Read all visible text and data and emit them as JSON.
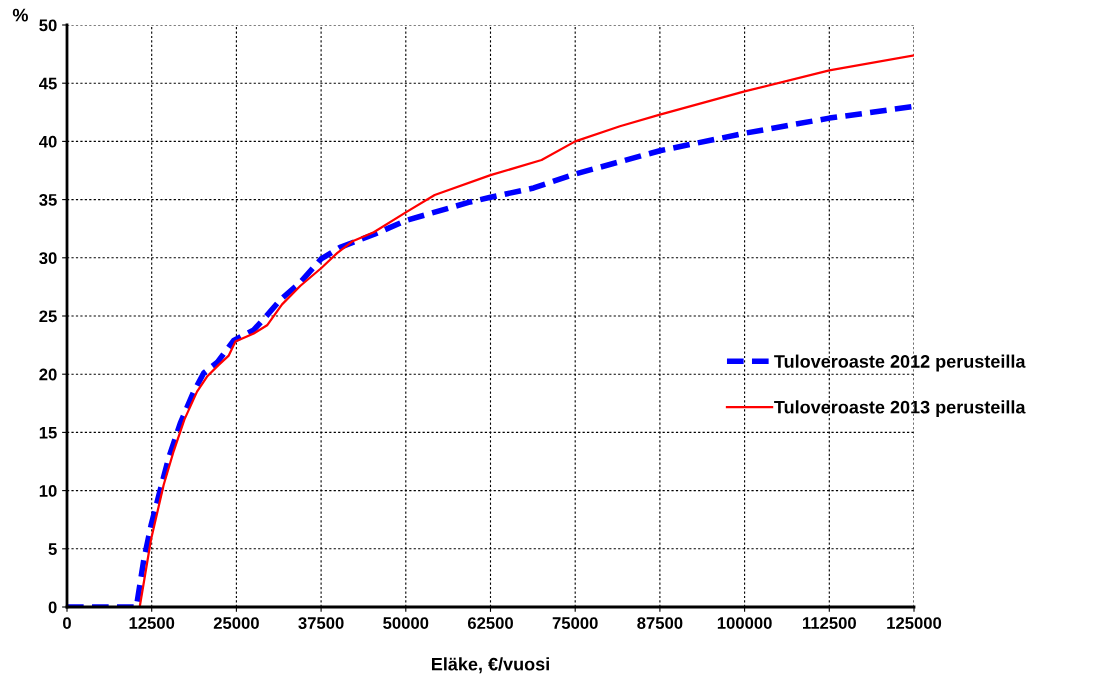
{
  "chart_data": {
    "type": "line",
    "ylabel": "%",
    "xlabel": "Eläke, €/vuosi",
    "xlim": [
      0,
      125000
    ],
    "xticks": [
      0,
      12500,
      25000,
      37500,
      50000,
      62500,
      75000,
      87500,
      100000,
      112500,
      125000
    ],
    "ylim": [
      0,
      50
    ],
    "yticks": [
      0,
      5,
      10,
      15,
      20,
      25,
      30,
      35,
      40,
      45,
      50
    ],
    "grid": true,
    "legend": "right",
    "marker": "none",
    "series": [
      {
        "name": "Tuloveroaste 2012 perusteilla",
        "color": "#0000ff",
        "line_style": "dashed",
        "x": [
          0,
          10240,
          11320,
          12400,
          13780,
          15000,
          16730,
          18700,
          20180,
          22150,
          24610,
          27560,
          29280,
          31500,
          34450,
          37500,
          40300,
          45270,
          50000,
          59520,
          62500,
          68870,
          75000,
          87500,
          100000,
          112500,
          125000
        ],
        "values": [
          0,
          0,
          4.0,
          7.0,
          10.1,
          12.8,
          15.8,
          18.5,
          20.1,
          21.0,
          22.9,
          23.8,
          24.9,
          26.4,
          27.9,
          29.9,
          30.9,
          32.0,
          33.2,
          34.8,
          35.2,
          36.0,
          37.2,
          39.2,
          40.7,
          42.0,
          43.0
        ]
      },
      {
        "name": "Tuloveroaste 2013 perusteilla",
        "color": "#ff0000",
        "line_style": "solid",
        "x": [
          0,
          10730,
          12400,
          14270,
          15750,
          17320,
          19190,
          20670,
          22390,
          23870,
          24850,
          27560,
          29530,
          31740,
          34450,
          37500,
          39860,
          42060,
          45270,
          50000,
          54260,
          62500,
          70040,
          75000,
          81600,
          87500,
          100000,
          112500,
          125000
        ],
        "values": [
          0,
          0,
          5.8,
          10.5,
          13.4,
          16.1,
          18.5,
          19.8,
          20.8,
          21.6,
          22.8,
          23.5,
          24.2,
          26.0,
          27.6,
          29.1,
          30.4,
          31.4,
          32.2,
          33.9,
          35.4,
          37.1,
          38.4,
          40.0,
          41.3,
          42.3,
          44.3,
          46.1,
          47.4
        ]
      }
    ]
  }
}
